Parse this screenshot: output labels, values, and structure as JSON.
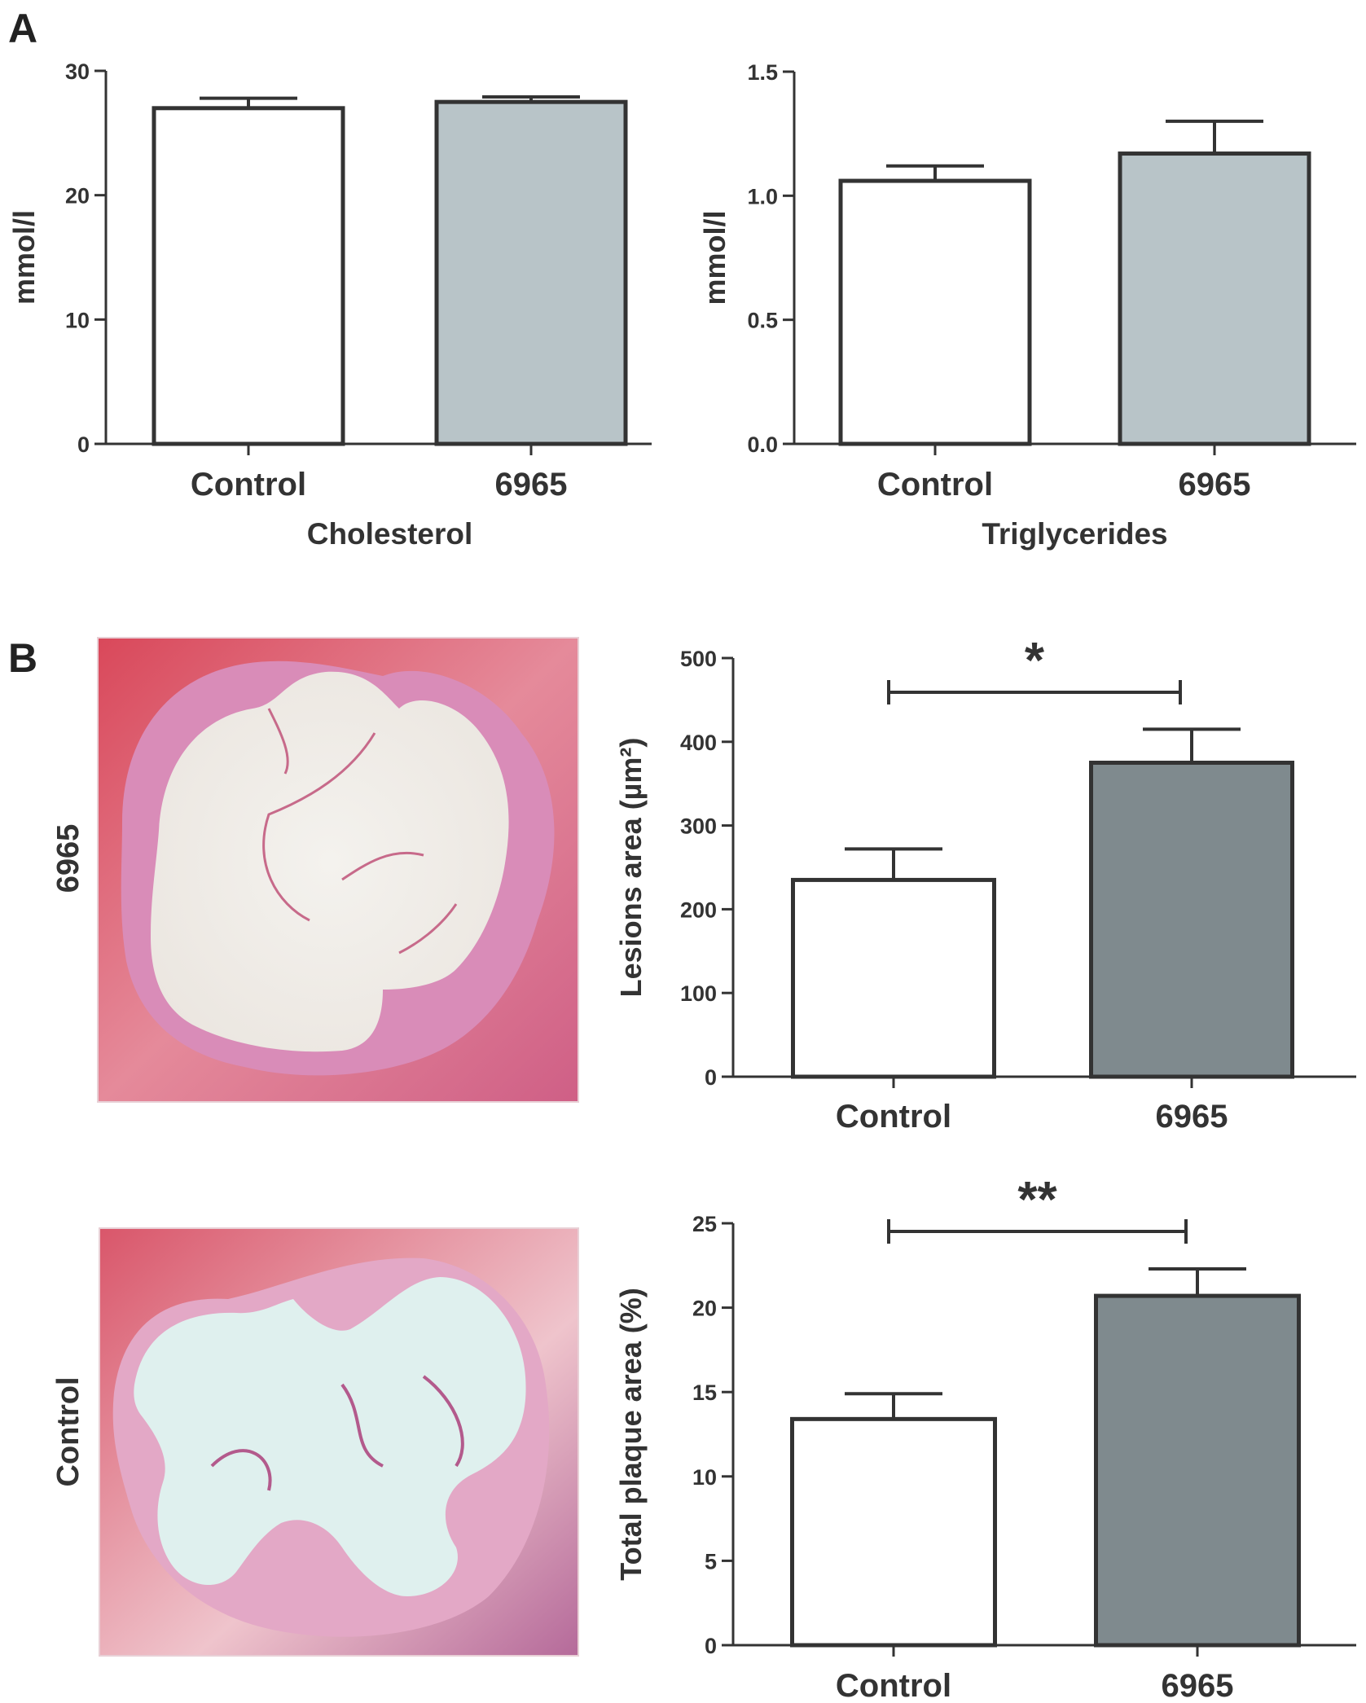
{
  "panels": {
    "a": "A",
    "b": "B"
  },
  "micrographs": [
    {
      "label": "6965"
    },
    {
      "label": "Control"
    }
  ],
  "colors": {
    "axis": "#333333",
    "white_bar": "#ffffff",
    "light_grey": "#b8c4c8",
    "dark_grey": "#7f8a8e"
  },
  "chart_data": [
    {
      "type": "bar",
      "categories": [
        "Control",
        "6965"
      ],
      "values": [
        27.0,
        27.5
      ],
      "errors": [
        0.8,
        0.4
      ],
      "fills": [
        "white_bar",
        "light_grey"
      ],
      "xlabel": "Cholesterol",
      "ylabel": "mmol/l",
      "ylim": [
        0,
        30
      ],
      "yticks": [
        0,
        10,
        20,
        30
      ],
      "ytick_labels": [
        "0",
        "10",
        "20",
        "30"
      ]
    },
    {
      "type": "bar",
      "categories": [
        "Control",
        "6965"
      ],
      "values": [
        1.06,
        1.17
      ],
      "errors": [
        0.06,
        0.13
      ],
      "fills": [
        "white_bar",
        "light_grey"
      ],
      "xlabel": "Triglycerides",
      "ylabel": "mmol/l",
      "ylim": [
        0,
        1.5
      ],
      "yticks": [
        0,
        0.5,
        1.0,
        1.5
      ],
      "ytick_labels": [
        "0.0",
        "0.5",
        "1.0",
        "1.5"
      ]
    },
    {
      "type": "bar",
      "categories": [
        "Control",
        "6965"
      ],
      "values": [
        235,
        375
      ],
      "errors": [
        37,
        40
      ],
      "fills": [
        "white_bar",
        "dark_grey"
      ],
      "xlabel": "",
      "ylabel": "Lesions area (µm²)",
      "ylim": [
        0,
        500
      ],
      "yticks": [
        0,
        100,
        200,
        300,
        400,
        500
      ],
      "ytick_labels": [
        "0",
        "100",
        "200",
        "300",
        "400",
        "500"
      ],
      "significance": "*"
    },
    {
      "type": "bar",
      "categories": [
        "Control",
        "6965"
      ],
      "values": [
        13.4,
        20.7
      ],
      "errors": [
        1.5,
        1.6
      ],
      "fills": [
        "white_bar",
        "dark_grey"
      ],
      "xlabel": "",
      "ylabel": "Total plaque area (%)",
      "ylim": [
        0,
        25
      ],
      "yticks": [
        0,
        5,
        10,
        15,
        20,
        25
      ],
      "ytick_labels": [
        "0",
        "5",
        "10",
        "15",
        "20",
        "25"
      ],
      "significance": "**"
    }
  ]
}
